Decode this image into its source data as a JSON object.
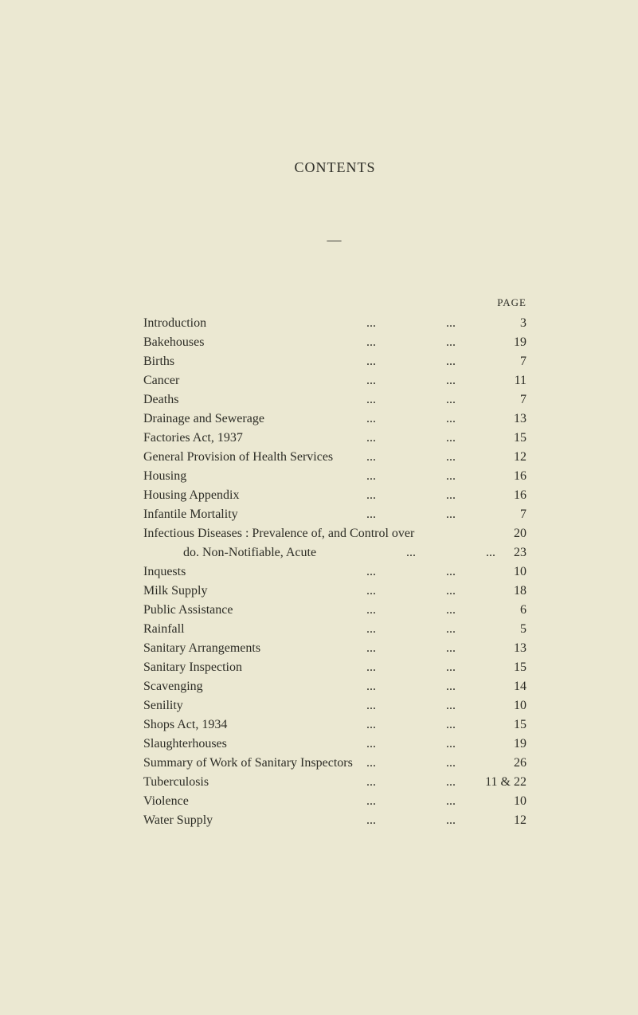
{
  "title": "CONTENTS",
  "dash": "—",
  "page_header": "PAGE",
  "entries": [
    {
      "label": "Introduction",
      "page": "3"
    },
    {
      "label": "Bakehouses",
      "page": "19"
    },
    {
      "label": "Births",
      "page": "7"
    },
    {
      "label": "Cancer",
      "page": "11"
    },
    {
      "label": "Deaths",
      "page": "7"
    },
    {
      "label": "Drainage and Sewerage",
      "page": "13"
    },
    {
      "label": "Factories Act, 1937",
      "page": "15"
    },
    {
      "label": "General Provision of Health Services",
      "page": "12"
    },
    {
      "label": "Housing",
      "page": "16"
    },
    {
      "label": "Housing Appendix",
      "page": "16"
    },
    {
      "label": "Infantile Mortality",
      "page": "7"
    },
    {
      "label": "Infectious Diseases : Prevalence of, and Control over",
      "page": "20",
      "wide": true
    },
    {
      "label": "do.          Non-Notifiable, Acute",
      "page": "23",
      "sub": true
    },
    {
      "label": "Inquests",
      "page": "10"
    },
    {
      "label": "Milk Supply",
      "page": "18"
    },
    {
      "label": "Public Assistance",
      "page": "6"
    },
    {
      "label": "Rainfall",
      "page": "5"
    },
    {
      "label": "Sanitary Arrangements",
      "page": "13"
    },
    {
      "label": "Sanitary Inspection",
      "page": "15"
    },
    {
      "label": "Scavenging",
      "page": "14"
    },
    {
      "label": "Senility",
      "page": "10"
    },
    {
      "label": "Shops Act, 1934",
      "page": "15"
    },
    {
      "label": "Slaughterhouses",
      "page": "19"
    },
    {
      "label": "Summary of Work of Sanitary Inspectors",
      "page": "26"
    },
    {
      "label": "Tuberculosis",
      "page": "11 & 22"
    },
    {
      "label": "Violence",
      "page": "10"
    },
    {
      "label": "Water Supply",
      "page": "12"
    }
  ],
  "dots": "..."
}
